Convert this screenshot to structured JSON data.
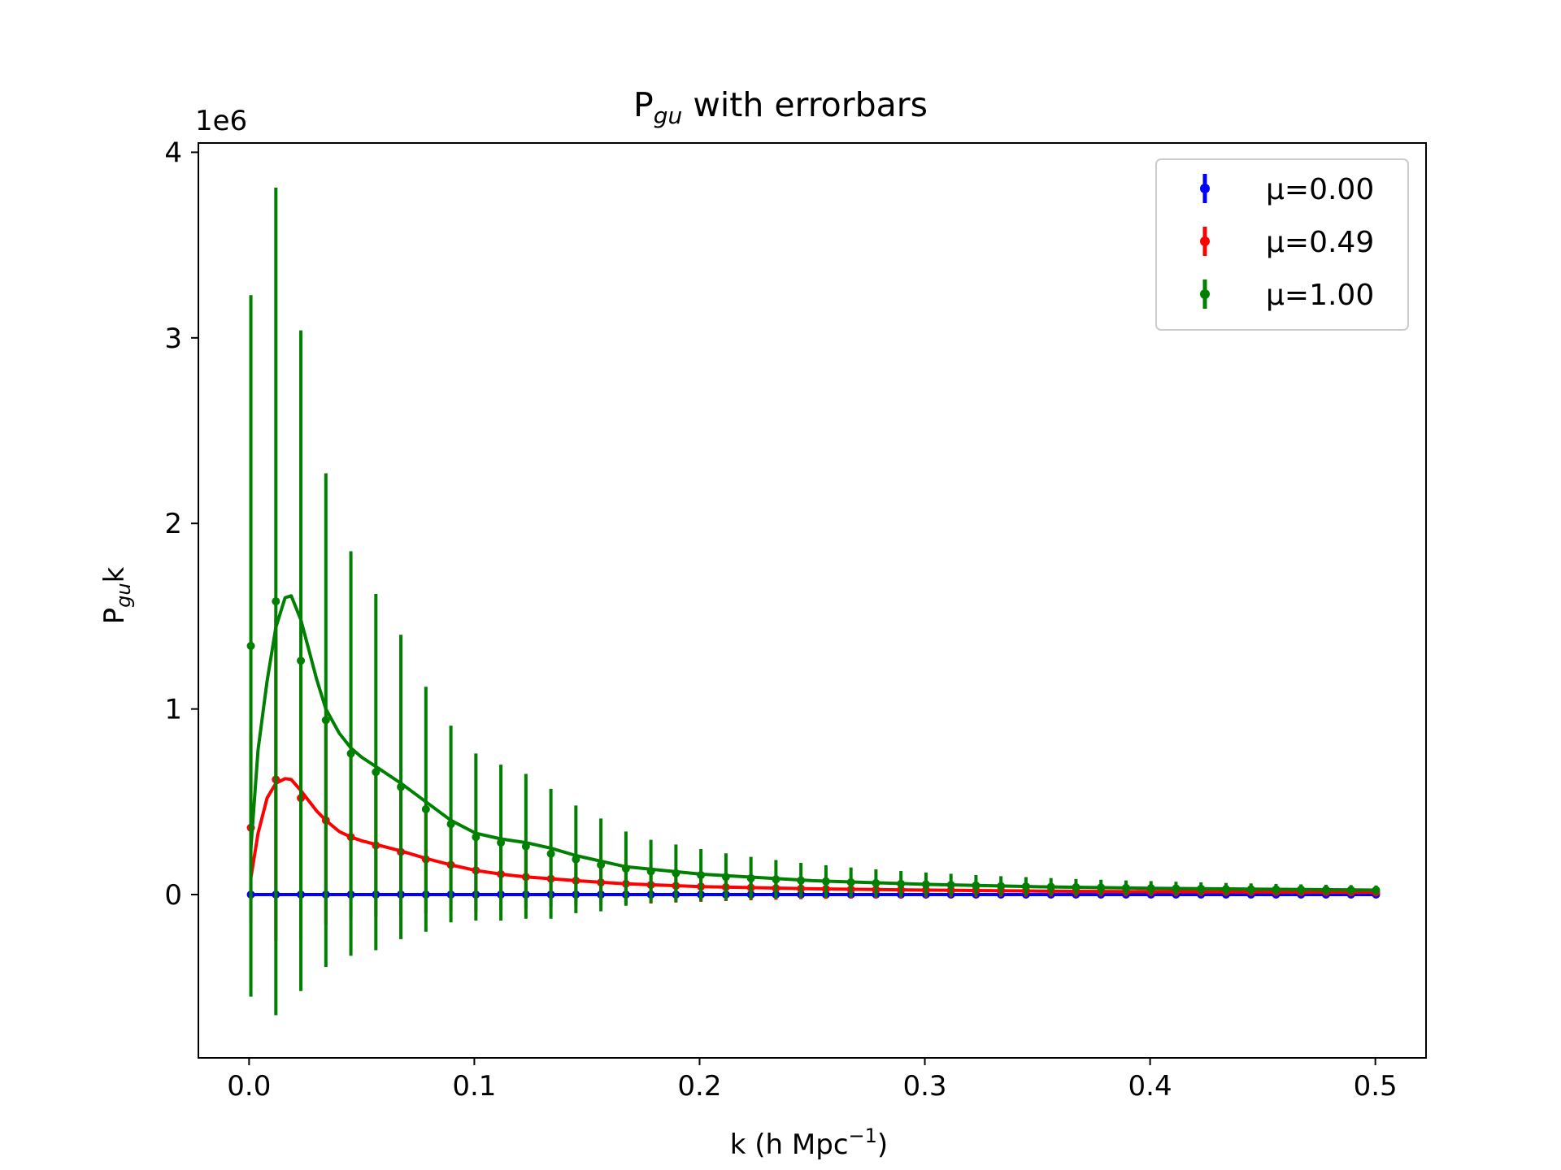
{
  "chart_data": {
    "type": "line",
    "title": {
      "main": "P",
      "sub": "gu",
      "rest": " with errorbars"
    },
    "xlabel": {
      "main": "k (h Mpc",
      "sup": "−1",
      "rest": ")"
    },
    "ylabel": {
      "main": "P",
      "sub": "gu",
      "rest": "k"
    },
    "offset_text": "1e6",
    "y_scale": 1000000,
    "xlim": [
      -0.0225,
      0.5225
    ],
    "ylim": [
      -880000,
      4050000
    ],
    "x_ticks": [
      "0.0",
      "0.1",
      "0.2",
      "0.3",
      "0.4",
      "0.5"
    ],
    "y_ticks": [
      "0",
      "1",
      "2",
      "3",
      "4"
    ],
    "legend_position": "upper right",
    "grid": false,
    "x": [
      0.0008,
      0.0119,
      0.023,
      0.0341,
      0.0452,
      0.0563,
      0.0674,
      0.0785,
      0.0896,
      0.1007,
      0.1118,
      0.1229,
      0.134,
      0.1451,
      0.1562,
      0.1673,
      0.1784,
      0.1895,
      0.2006,
      0.2117,
      0.2228,
      0.2339,
      0.245,
      0.2561,
      0.2672,
      0.2783,
      0.2894,
      0.3005,
      0.3116,
      0.3227,
      0.3338,
      0.3449,
      0.356,
      0.3671,
      0.3782,
      0.3893,
      0.4004,
      0.4115,
      0.4226,
      0.4337,
      0.4448,
      0.4559,
      0.467,
      0.4781,
      0.4892,
      0.5003
    ],
    "series": [
      {
        "name": "μ=0.00",
        "color": "#0000ff",
        "y": [
          0,
          0,
          0,
          0,
          0,
          0,
          0,
          0,
          0,
          0,
          0,
          0,
          0,
          0,
          0,
          0,
          0,
          0,
          0,
          0,
          0,
          0,
          0,
          0,
          0,
          0,
          0,
          0,
          0,
          0,
          0,
          0,
          0,
          0,
          0,
          0,
          0,
          0,
          0,
          0,
          0,
          0,
          0,
          0,
          0,
          0
        ],
        "yerr": [
          0,
          0,
          0,
          0,
          0,
          0,
          0,
          0,
          0,
          0,
          0,
          0,
          0,
          0,
          0,
          0,
          0,
          0,
          0,
          0,
          0,
          0,
          0,
          0,
          0,
          0,
          0,
          0,
          0,
          0,
          0,
          0,
          0,
          0,
          0,
          0,
          0,
          0,
          0,
          0,
          0,
          0,
          0,
          0,
          0,
          0
        ]
      },
      {
        "name": "μ=0.49",
        "color": "#ff0000",
        "y": [
          360000,
          620000,
          520000,
          400000,
          310000,
          265000,
          230000,
          190000,
          160000,
          130000,
          110000,
          95000,
          85000,
          75000,
          65000,
          58000,
          52000,
          47000,
          43000,
          40000,
          37000,
          34000,
          32000,
          30000,
          28000,
          26000,
          25000,
          24000,
          23000,
          22000,
          21000,
          20000,
          19000,
          18000,
          17500,
          17000,
          16500,
          16000,
          15500,
          15000,
          14500,
          14000,
          13500,
          13000,
          12500,
          12000
        ],
        "yerr": [
          510000,
          870000,
          760000,
          560000,
          440000,
          385000,
          340000,
          290000,
          250000,
          220000,
          190000,
          170000,
          150000,
          135000,
          120000,
          110000,
          100000,
          90000,
          82000,
          75000,
          68000,
          62000,
          57000,
          53000,
          49000,
          46000,
          43000,
          40000,
          38000,
          36000,
          34000,
          32000,
          30000,
          29000,
          28000,
          27000,
          26000,
          25000,
          24000,
          23000,
          22000,
          21000,
          20000,
          19500,
          19000,
          18500
        ]
      },
      {
        "name": "μ=1.00",
        "color": "#008000",
        "y": [
          1340000,
          1580000,
          1260000,
          940000,
          760000,
          660000,
          580000,
          460000,
          380000,
          310000,
          280000,
          260000,
          220000,
          190000,
          160000,
          140000,
          125000,
          115000,
          105000,
          95000,
          88000,
          82000,
          76000,
          71000,
          66000,
          62000,
          58000,
          55000,
          52000,
          49000,
          46000,
          44000,
          42000,
          40000,
          38000,
          36000,
          34500,
          33000,
          31500,
          30000,
          29000,
          28000,
          27000,
          26000,
          25000,
          24000
        ],
        "yerr": [
          1890000,
          2230000,
          1780000,
          1330000,
          1090000,
          960000,
          820000,
          660000,
          530000,
          450000,
          420000,
          390000,
          350000,
          290000,
          250000,
          200000,
          170000,
          155000,
          140000,
          127000,
          115000,
          104000,
          95000,
          87000,
          80000,
          74000,
          69000,
          64000,
          60000,
          56000,
          53000,
          50000,
          47000,
          44000,
          42000,
          40000,
          38000,
          36000,
          34000,
          32500,
          31000,
          29500,
          28000,
          27000,
          26000,
          25000
        ]
      }
    ],
    "curves": [
      {
        "series": "μ=0.00",
        "x": [
          0.0,
          0.5
        ],
        "y": [
          0,
          0
        ]
      },
      {
        "series": "μ=0.49",
        "x": [
          0.0008,
          0.004,
          0.008,
          0.0119,
          0.016,
          0.0187,
          0.023,
          0.03,
          0.0341,
          0.04,
          0.0452,
          0.05,
          0.0563,
          0.0674,
          0.0785,
          0.0896,
          0.1007,
          0.1118,
          0.1229,
          0.1451,
          0.1673,
          0.2006,
          0.25,
          0.3,
          0.35,
          0.4,
          0.45,
          0.5
        ],
        "y": [
          90000,
          330000,
          520000,
          600000,
          625000,
          620000,
          560000,
          450000,
          400000,
          340000,
          310000,
          290000,
          270000,
          235000,
          195000,
          160000,
          130000,
          110000,
          95000,
          75000,
          58000,
          43000,
          31000,
          24000,
          19000,
          16000,
          14000,
          12000
        ]
      },
      {
        "series": "μ=1.00",
        "x": [
          0.0008,
          0.004,
          0.008,
          0.0119,
          0.016,
          0.0187,
          0.023,
          0.03,
          0.0341,
          0.04,
          0.0452,
          0.05,
          0.0563,
          0.0674,
          0.0785,
          0.0896,
          0.1007,
          0.1118,
          0.1229,
          0.134,
          0.1451,
          0.1673,
          0.2006,
          0.25,
          0.3,
          0.35,
          0.4,
          0.45,
          0.5
        ],
        "y": [
          250000,
          780000,
          1150000,
          1440000,
          1600000,
          1610000,
          1480000,
          1160000,
          1000000,
          870000,
          790000,
          740000,
          690000,
          600000,
          500000,
          400000,
          330000,
          300000,
          280000,
          250000,
          210000,
          150000,
          110000,
          75000,
          55000,
          42000,
          34000,
          29000,
          24000
        ]
      }
    ]
  }
}
